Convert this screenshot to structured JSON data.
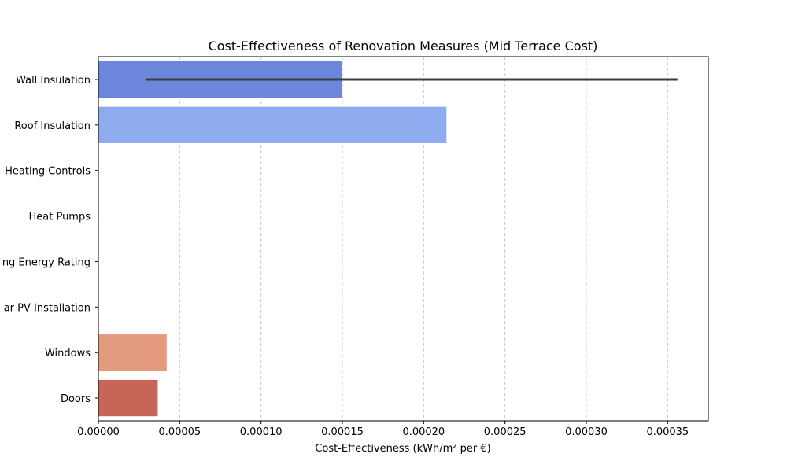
{
  "chart_data": {
    "type": "bar",
    "orientation": "horizontal",
    "title": "Cost-Effectiveness of Renovation Measures (Mid Terrace Cost)",
    "xlabel": "Cost-Effectiveness (kWh/m² per €)",
    "ylabel": "",
    "xlim": [
      0,
      0.000375
    ],
    "xticks": [
      0,
      5e-05,
      0.0001,
      0.00015,
      0.0002,
      0.00025,
      0.0003,
      0.00035
    ],
    "xtick_labels": [
      "0.00000",
      "0.00005",
      "0.00010",
      "0.00015",
      "0.00020",
      "0.00025",
      "0.00030",
      "0.00035"
    ],
    "grid": {
      "x": true,
      "y": false,
      "style": "dashed"
    },
    "categories": [
      "Wall Insulation",
      "Roof Insulation",
      "Heating Controls",
      "Heat Pumps",
      "Building Energy Rating",
      "Solar PV Installation",
      "Windows",
      "Doors"
    ],
    "category_labels_visible": [
      "Wall Insulation",
      "Roof Insulation",
      "Heating Controls",
      "Heat Pumps",
      "ng Energy Rating",
      "ar PV Installation",
      "Windows",
      "Doors"
    ],
    "values": [
      0.00015,
      0.000214,
      0,
      0,
      0,
      0,
      4.2e-05,
      3.65e-05
    ],
    "error_bars": [
      {
        "category": "Wall Insulation",
        "low": 2.95e-05,
        "high": 0.000356
      }
    ],
    "colors": [
      "#6b86db",
      "#8fabef",
      "#b9cff9",
      "#dcdfe8",
      "#f1d4c4",
      "#f5b89e",
      "#e39a7f",
      "#c86559"
    ]
  }
}
